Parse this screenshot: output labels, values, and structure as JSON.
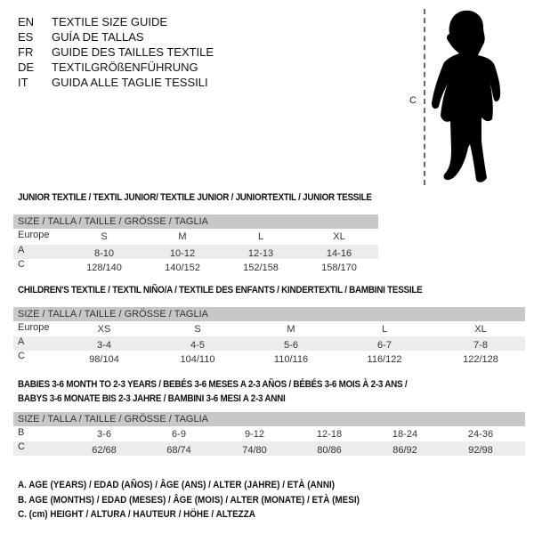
{
  "languages": [
    {
      "code": "EN",
      "text": "TEXTILE SIZE GUIDE"
    },
    {
      "code": "ES",
      "text": "GUÍA DE TALLAS"
    },
    {
      "code": "FR",
      "text": "GUIDE DES TAILLES TEXTILE"
    },
    {
      "code": "DE",
      "text": "TEXTILGRÖßENFÜHRUNG"
    },
    {
      "code": "IT",
      "text": "GUIDA ALLE TAGLIE TESSILI"
    }
  ],
  "figure": {
    "height_label": "C",
    "icon": "baby-silhouette"
  },
  "tables": [
    {
      "title": [
        "JUNIOR TEXTILE / TEXTIL JUNIOR/ TEXTILE JUNIOR / JUNIORTEXTIL / JUNIOR TESSILE"
      ],
      "header": "SIZE / TALLA / TAILLE / GRÖSSE / TAGLIA",
      "rows": [
        {
          "label": "Europe",
          "values": [
            "S",
            "M",
            "L",
            "XL"
          ]
        },
        {
          "label": "A",
          "values": [
            "8-10",
            "10-12",
            "12-13",
            "14-16"
          ]
        },
        {
          "label": "C",
          "values": [
            "128/140",
            "140/152",
            "152/158",
            "158/170"
          ]
        }
      ]
    },
    {
      "title": [
        "CHILDREN'S TEXTILE / TEXTIL NIÑO/A / TEXTILE DES ENFANTS / KINDERTEXTIL / BAMBINI TESSILE"
      ],
      "header": "SIZE / TALLA / TAILLE / GRÖSSE / TAGLIA",
      "rows": [
        {
          "label": "Europe",
          "values": [
            "XS",
            "S",
            "M",
            "L",
            "XL"
          ]
        },
        {
          "label": "A",
          "values": [
            "3-4",
            "4-5",
            "5-6",
            "6-7",
            "7-8"
          ]
        },
        {
          "label": "C",
          "values": [
            "98/104",
            "104/110",
            "110/116",
            "116/122",
            "122/128"
          ]
        }
      ]
    },
    {
      "title": [
        "BABIES 3-6 MONTH TO 2-3 YEARS / BEBÉS 3-6 MESES A 2-3 AÑOS / BÉBÉS 3-6 MOIS À 2-3 ANS /",
        "BABYS 3-6 MONATE BIS 2-3 JAHRE / BAMBINI 3-6 MESI A 2-3 ANNI"
      ],
      "header": "SIZE / TALLA / TAILLE / GRÖSSE / TAGLIA",
      "rows": [
        {
          "label": "B",
          "values": [
            "3-6",
            "6-9",
            "9-12",
            "12-18",
            "18-24",
            "24-36"
          ]
        },
        {
          "label": "C",
          "values": [
            "62/68",
            "68/74",
            "74/80",
            "80/86",
            "86/92",
            "92/98"
          ]
        }
      ]
    }
  ],
  "legend": [
    "A. AGE (YEARS) / EDAD (AÑOS) / ÂGE (ANS) / ALTER (JAHRE) / ETÀ (ANNI)",
    "B. AGE (MONTHS) / EDAD (MESES) / ÂGE (MOIS) / ALTER (MONATE) / ETÀ (MESI)",
    "C. (cm) HEIGHT / ALTURA / HAUTEUR / HÖHE / ALTEZZA"
  ],
  "colors": {
    "header_bg": "#c8c8c8",
    "alt_row_bg": "#ececec",
    "text": "#222222"
  }
}
